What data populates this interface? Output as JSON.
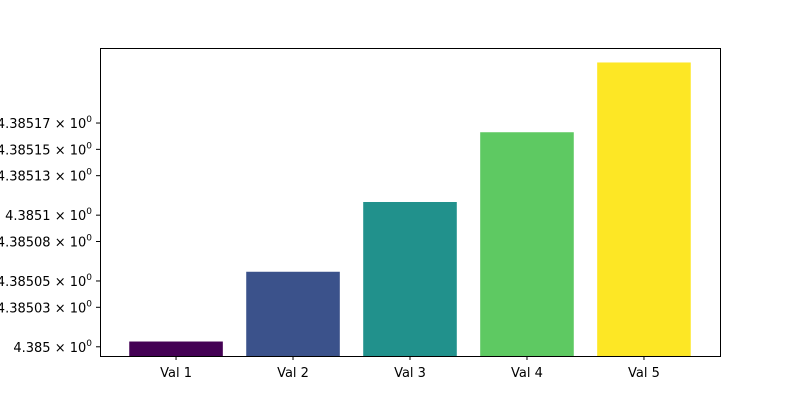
{
  "chart_data": {
    "type": "bar",
    "title": "",
    "xlabel": "",
    "ylabel": "",
    "categories": [
      "Val 1",
      "Val 2",
      "Val 3",
      "Val 4",
      "Val 5"
    ],
    "values": [
      4.385004,
      4.385057,
      4.38511,
      4.385163,
      4.385216
    ],
    "colors": [
      "#440154",
      "#3b528b",
      "#21918c",
      "#5ec962",
      "#fde725"
    ],
    "yscale": "log",
    "ylim": [
      4.384993,
      4.385227
    ],
    "yticks": [
      {
        "value": 4.385,
        "label": "4.385"
      },
      {
        "value": 4.38503,
        "label": "4.38503"
      },
      {
        "value": 4.38505,
        "label": "4.38505"
      },
      {
        "value": 4.38508,
        "label": "4.38508"
      },
      {
        "value": 4.3851,
        "label": "4.3851"
      },
      {
        "value": 4.38513,
        "label": "4.38513"
      },
      {
        "value": 4.38515,
        "label": "4.38515"
      },
      {
        "value": 4.38517,
        "label": "4.38517"
      }
    ],
    "ytick_suffix_base": "× 10",
    "ytick_suffix_exponent": "0",
    "grid": false,
    "legend": "none"
  }
}
